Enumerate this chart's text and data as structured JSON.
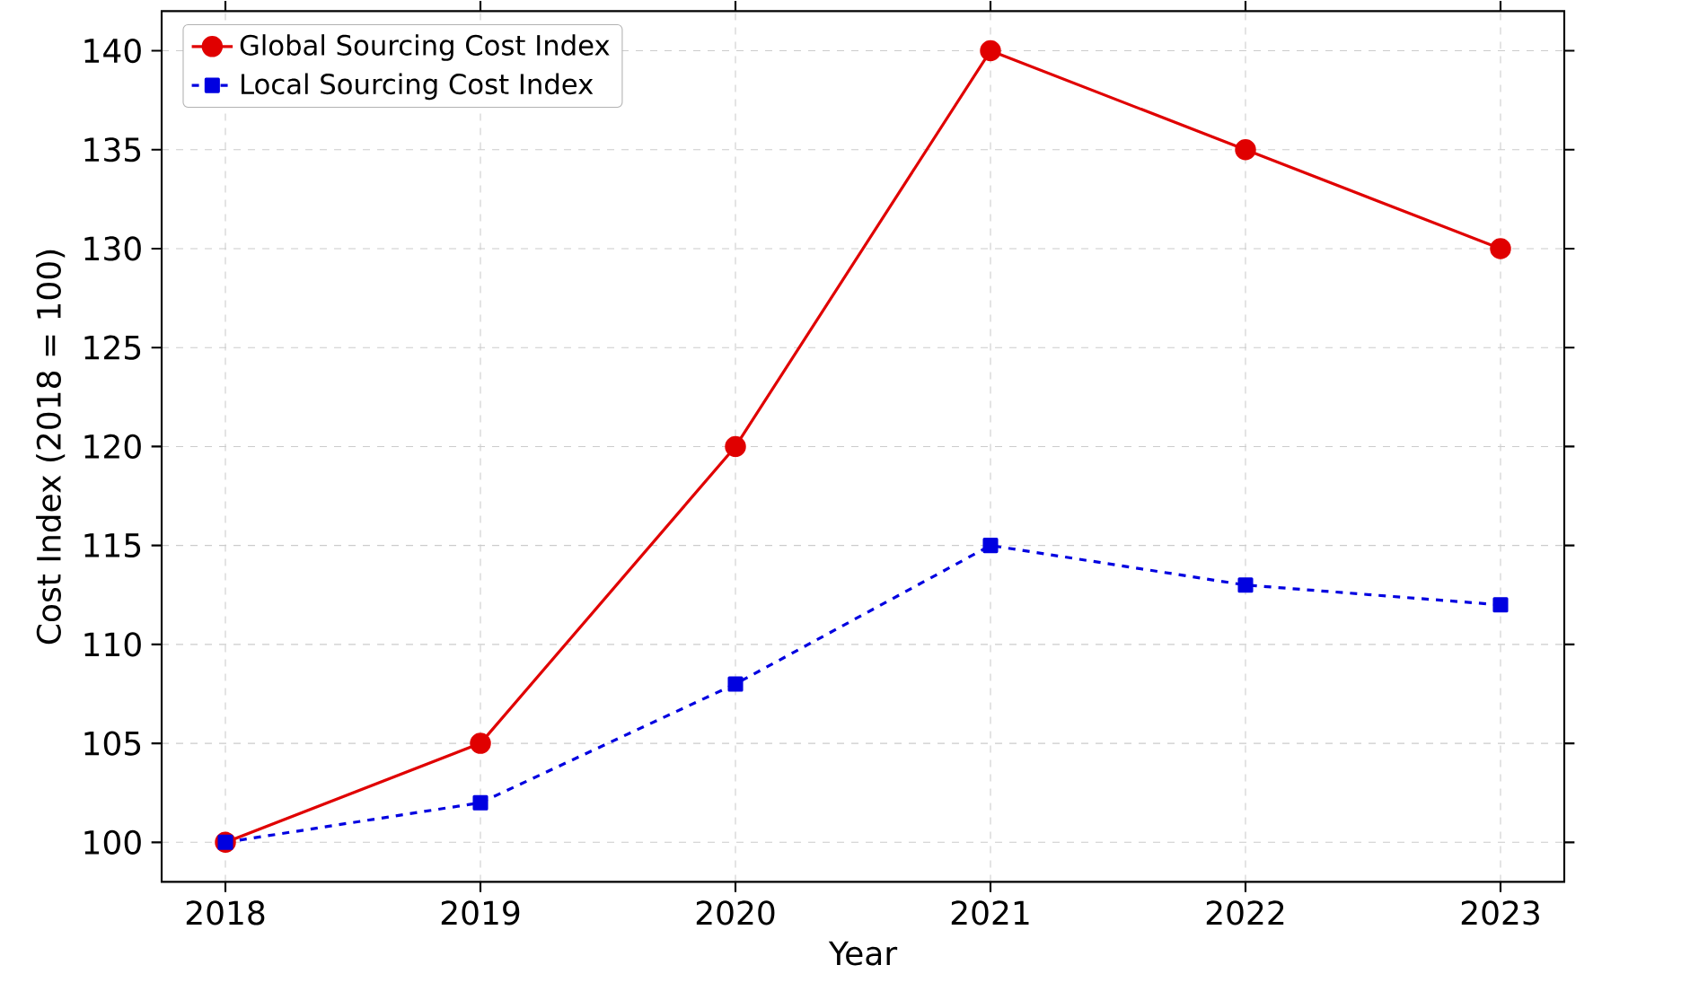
{
  "chart_data": {
    "type": "line",
    "xlabel": "Year",
    "ylabel": "Cost Index (2018 = 100)",
    "x": [
      2018,
      2019,
      2020,
      2021,
      2022,
      2023
    ],
    "series": [
      {
        "name": "Global Sourcing Cost Index",
        "color": "#e00000",
        "values": [
          100,
          105,
          120,
          140,
          135,
          130
        ],
        "marker": "circle",
        "line_style": "solid"
      },
      {
        "name": "Local Sourcing Cost Index",
        "color": "#0000e0",
        "values": [
          100,
          102,
          108,
          115,
          113,
          112
        ],
        "marker": "square",
        "line_style": "dashed"
      }
    ],
    "xlim": [
      2017.75,
      2023.25
    ],
    "ylim": [
      98,
      142
    ],
    "xticks": [
      2018,
      2019,
      2020,
      2021,
      2022,
      2023
    ],
    "yticks": [
      100,
      105,
      110,
      115,
      120,
      125,
      130,
      135,
      140
    ],
    "grid": true,
    "legend": "top left"
  }
}
